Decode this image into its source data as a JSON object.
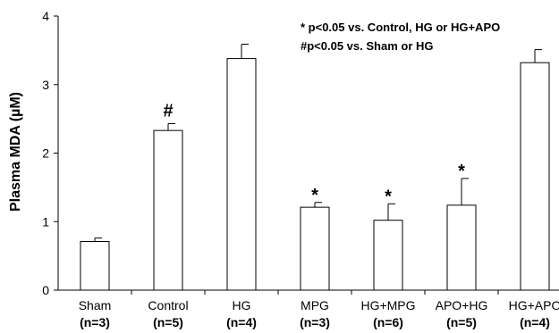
{
  "chart_data": {
    "type": "bar",
    "ylabel": "Plasma MDA (µM)",
    "xlabel": "",
    "ylim": [
      0,
      4
    ],
    "yticks": [
      "0",
      "1",
      "2",
      "3",
      "4"
    ],
    "grid": false,
    "categories": [
      {
        "name": "Sham",
        "n": "(n=3)"
      },
      {
        "name": "Control",
        "n": "(n=5)"
      },
      {
        "name": "HG",
        "n": "(n=4)"
      },
      {
        "name": "MPG",
        "n": "(n=3)"
      },
      {
        "name": "HG+MPG",
        "n": "(n=6)"
      },
      {
        "name": "APO+HG",
        "n": "(n=5)"
      },
      {
        "name": "HG+APO",
        "n": "(n=4)"
      }
    ],
    "values": [
      0.71,
      2.33,
      3.38,
      1.21,
      1.02,
      1.24,
      3.32
    ],
    "errors": [
      0.05,
      0.1,
      0.21,
      0.07,
      0.24,
      0.39,
      0.19
    ],
    "markers": [
      "",
      "#",
      "",
      "*",
      "*",
      "*",
      ""
    ],
    "annotations": [
      "* p<0.05 vs. Control, HG or HG+APO",
      "#p<0.05 vs. Sham or HG"
    ]
  }
}
